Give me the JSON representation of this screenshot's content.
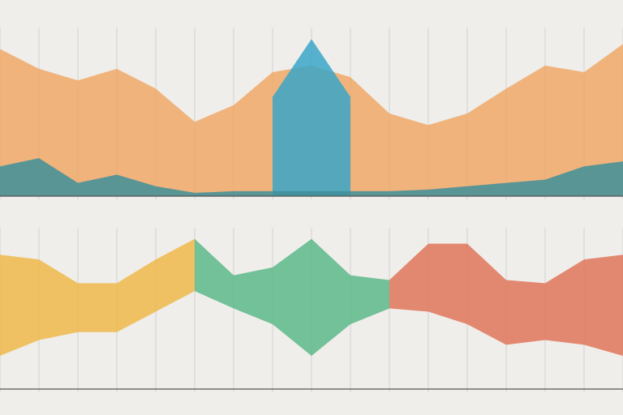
{
  "chart_data": [
    {
      "type": "area",
      "grid": true,
      "x": [
        0,
        1,
        2,
        3,
        4,
        5,
        6,
        7,
        8,
        9,
        10,
        11,
        12,
        13,
        14,
        15,
        16
      ],
      "xlim": [
        0,
        16
      ],
      "ylim": [
        0,
        100
      ],
      "series": [
        {
          "color": "#f0a868",
          "values": [
            89,
            77,
            70,
            77,
            65,
            45,
            55,
            75,
            79,
            72,
            50,
            43,
            50,
            65,
            79,
            75,
            92
          ]
        },
        {
          "color": "#3aa6c8",
          "values": [
            null,
            null,
            null,
            null,
            null,
            null,
            null,
            60,
            95,
            60,
            null,
            null,
            null,
            null,
            null,
            null,
            null
          ]
        },
        {
          "color": "#3f8f9a",
          "values": [
            18,
            23,
            8,
            13,
            6,
            2,
            3,
            3,
            3,
            3,
            3,
            4,
            6,
            8,
            10,
            18,
            21
          ]
        }
      ]
    },
    {
      "type": "band",
      "grid": true,
      "x": [
        0,
        1,
        2,
        3,
        4,
        5,
        6,
        7,
        8,
        9,
        10,
        11,
        12,
        13,
        14,
        15,
        16
      ],
      "xlim": [
        0,
        16
      ],
      "ylim": [
        0,
        100
      ],
      "series": [
        {
          "color": "#eeb84a",
          "values": [
            85,
            82,
            67,
            67,
            82,
            95,
            null,
            null,
            null,
            null,
            null,
            null,
            null,
            null,
            null,
            null,
            null
          ],
          "lows": [
            21,
            31,
            36,
            36,
            49,
            62,
            null,
            null,
            null,
            null,
            null,
            null,
            null,
            null,
            null,
            null,
            null
          ]
        },
        {
          "color": "#5cb88a",
          "values": [
            null,
            null,
            null,
            null,
            null,
            95,
            72,
            77,
            95,
            72,
            69,
            null,
            null,
            null,
            null,
            null,
            null
          ],
          "lows": [
            null,
            null,
            null,
            null,
            null,
            62,
            51,
            41,
            21,
            41,
            51,
            null,
            null,
            null,
            null,
            null,
            null
          ]
        },
        {
          "color": "#e0765a",
          "values": [
            null,
            null,
            null,
            null,
            null,
            null,
            null,
            null,
            null,
            null,
            69,
            92,
            92,
            69,
            67,
            82,
            85
          ],
          "lows": [
            null,
            null,
            null,
            null,
            null,
            null,
            null,
            null,
            null,
            null,
            51,
            49,
            41,
            28,
            31,
            28,
            21
          ]
        }
      ]
    }
  ]
}
